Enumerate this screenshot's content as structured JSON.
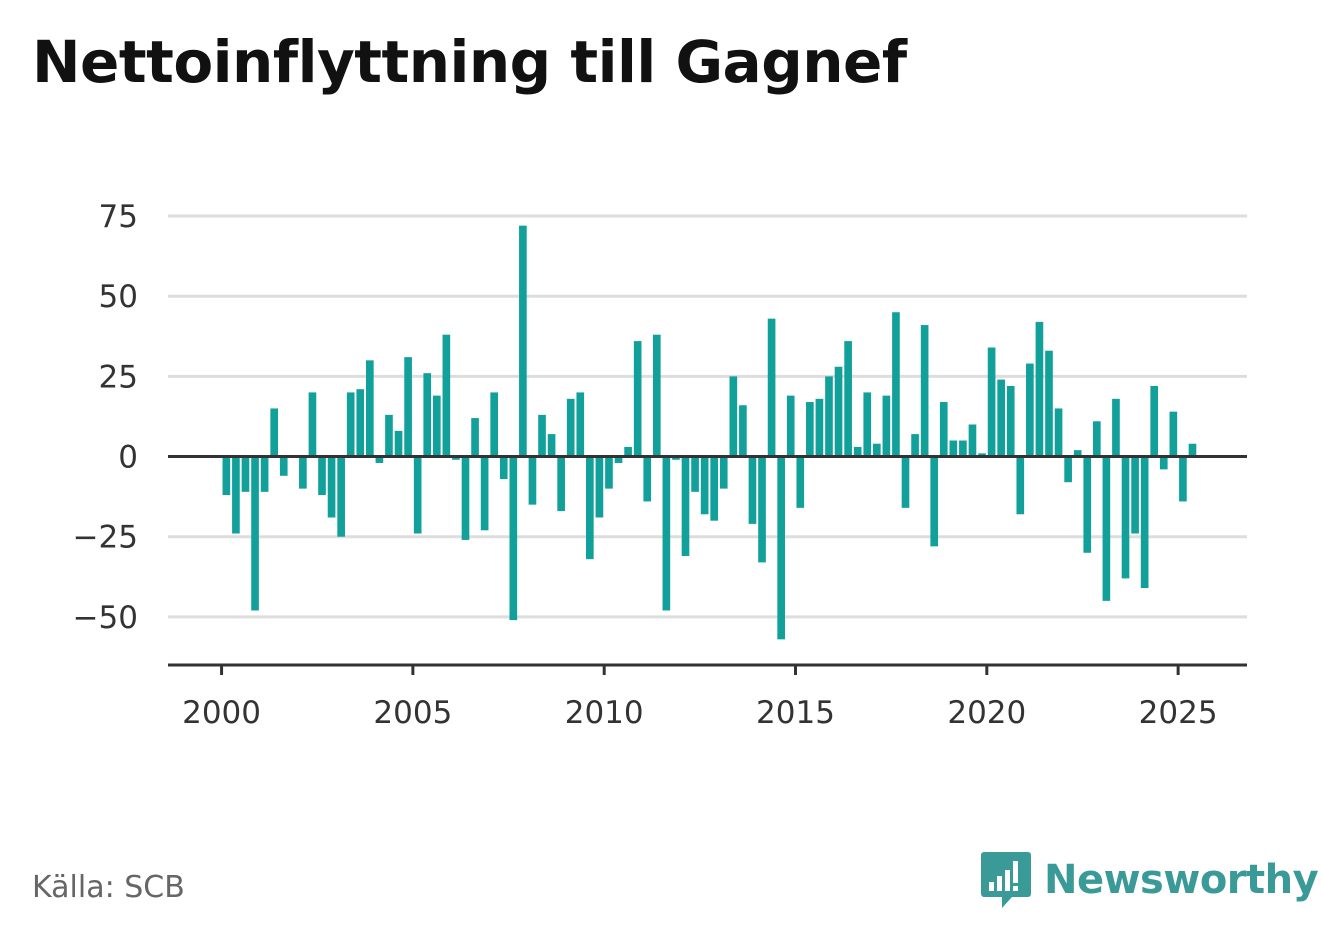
{
  "title": "Nettoinflyttning till Gagnef",
  "source": "Källa: SCB",
  "brand": {
    "name": "Newsworthy",
    "color": "#3a9a97",
    "icon": "bar-chart-speech-icon"
  },
  "colors": {
    "bar": "#12a09b",
    "grid": "#dddddd",
    "axis": "#333333"
  },
  "chart_data": {
    "type": "bar",
    "title": "Nettoinflyttning till Gagnef",
    "xlabel": "",
    "ylabel": "",
    "ylim": [
      -65,
      80
    ],
    "xlim": [
      1998.6,
      2026.8
    ],
    "grid": true,
    "legend": "none",
    "y_ticks": [
      75,
      50,
      25,
      0,
      -25,
      -50
    ],
    "y_tick_labels": [
      "75",
      "50",
      "25",
      "0",
      "−25",
      "−50"
    ],
    "x_ticks": [
      2000,
      2005,
      2010,
      2015,
      2020,
      2025
    ],
    "x_tick_labels": [
      "2000",
      "2005",
      "2010",
      "2015",
      "2020",
      "2025"
    ],
    "bar_width_years": 0.2,
    "x": [
      2000.125,
      2000.375,
      2000.625,
      2000.875,
      2001.125,
      2001.375,
      2001.625,
      2001.875,
      2002.125,
      2002.375,
      2002.625,
      2002.875,
      2003.125,
      2003.375,
      2003.625,
      2003.875,
      2004.125,
      2004.375,
      2004.625,
      2004.875,
      2005.125,
      2005.375,
      2005.625,
      2005.875,
      2006.125,
      2006.375,
      2006.625,
      2006.875,
      2007.125,
      2007.375,
      2007.625,
      2007.875,
      2008.125,
      2008.375,
      2008.625,
      2008.875,
      2009.125,
      2009.375,
      2009.625,
      2009.875,
      2010.125,
      2010.375,
      2010.625,
      2010.875,
      2011.125,
      2011.375,
      2011.625,
      2011.875,
      2012.125,
      2012.375,
      2012.625,
      2012.875,
      2013.125,
      2013.375,
      2013.625,
      2013.875,
      2014.125,
      2014.375,
      2014.625,
      2014.875,
      2015.125,
      2015.375,
      2015.625,
      2015.875,
      2016.125,
      2016.375,
      2016.625,
      2016.875,
      2017.125,
      2017.375,
      2017.625,
      2017.875,
      2018.125,
      2018.375,
      2018.625,
      2018.875,
      2019.125,
      2019.375,
      2019.625,
      2019.875,
      2020.125,
      2020.375,
      2020.625,
      2020.875,
      2021.125,
      2021.375,
      2021.625,
      2021.875,
      2022.125,
      2022.375,
      2022.625,
      2022.875,
      2023.125,
      2023.375,
      2023.625,
      2023.875,
      2024.125,
      2024.375,
      2024.625,
      2024.875,
      2025.125,
      2025.375
    ],
    "values": [
      -12,
      -24,
      -11,
      -48,
      -11,
      15,
      -6,
      0,
      -10,
      20,
      -12,
      -19,
      -25,
      20,
      21,
      30,
      -2,
      13,
      8,
      31,
      -24,
      26,
      19,
      38,
      -1,
      -26,
      12,
      -23,
      20,
      -7,
      -51,
      72,
      -15,
      13,
      7,
      -17,
      18,
      20,
      -32,
      -19,
      -10,
      -2,
      3,
      36,
      -14,
      38,
      -48,
      -1,
      -31,
      -11,
      -18,
      -20,
      -10,
      25,
      16,
      -21,
      -33,
      43,
      -57,
      19,
      -16,
      17,
      18,
      25,
      28,
      36,
      3,
      20,
      4,
      19,
      45,
      -16,
      7,
      41,
      -28,
      17,
      5,
      5,
      10,
      1,
      34,
      24,
      22,
      -18,
      29,
      42,
      33,
      15,
      -8,
      2,
      -30,
      11,
      -45,
      18,
      -38,
      -24,
      -41,
      22,
      -4,
      14,
      -14,
      4
    ]
  }
}
